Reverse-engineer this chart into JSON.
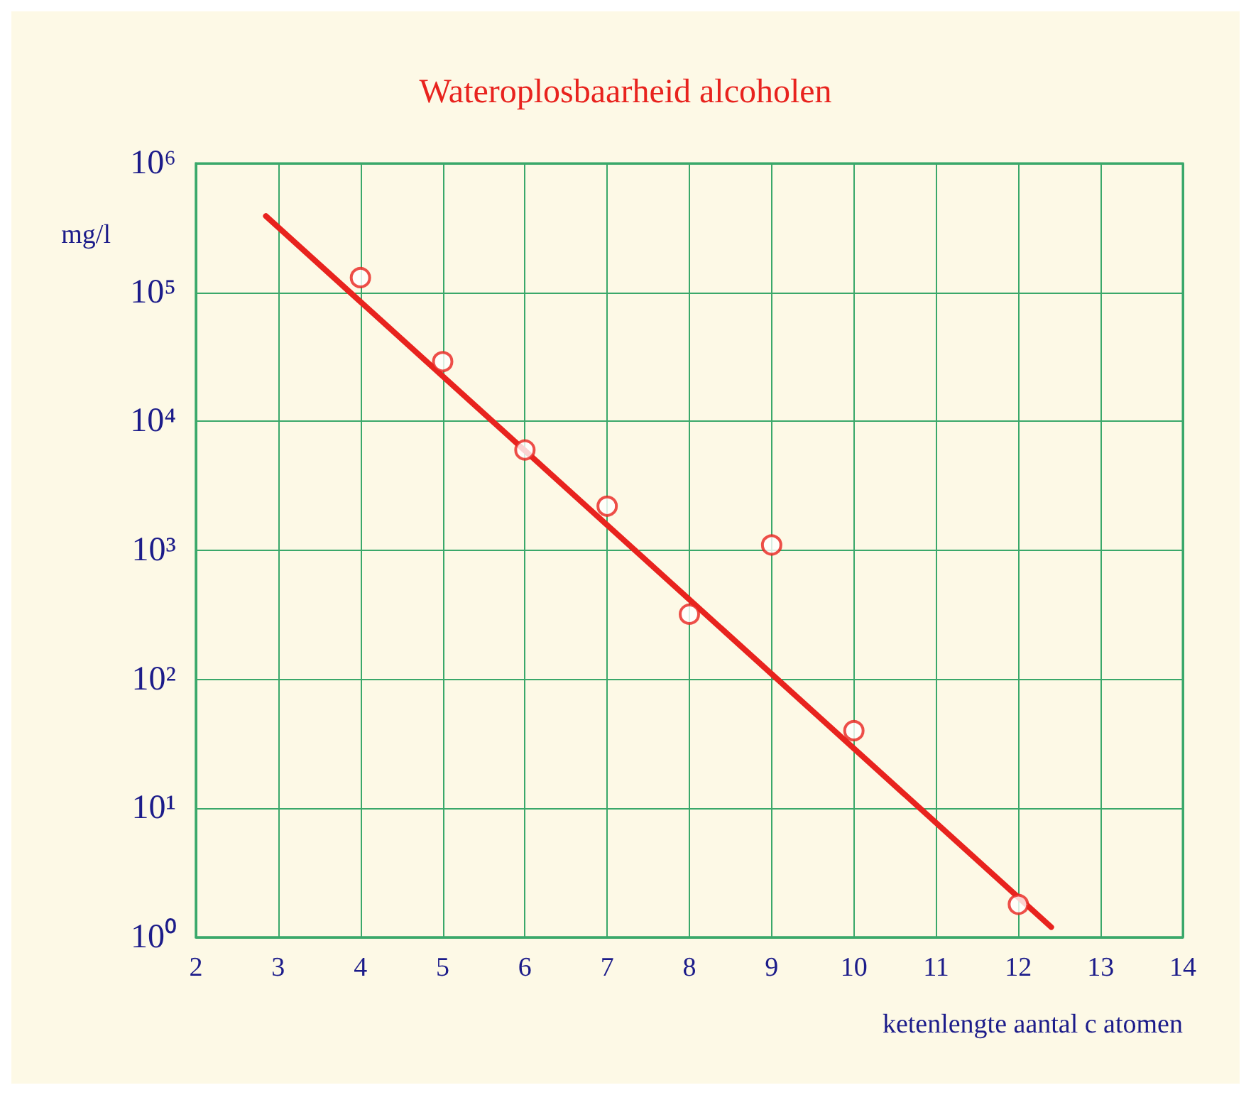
{
  "chart_data": {
    "type": "scatter",
    "title": "Wateroplosbaarheid alcoholen",
    "xlabel": "ketenlengte aantal c atomen",
    "ylabel": "mg/l",
    "log": "y",
    "grid": true,
    "xlim": [
      2,
      14
    ],
    "xticks": [
      2,
      3,
      4,
      5,
      6,
      7,
      8,
      9,
      10,
      11,
      12,
      13,
      14
    ],
    "ylim": [
      1,
      1000000
    ],
    "yticks": [
      {
        "value": 1,
        "label": "10⁰"
      },
      {
        "value": 10,
        "label": "10¹"
      },
      {
        "value": 100,
        "label": "10²"
      },
      {
        "value": 1000,
        "label": "10³"
      },
      {
        "value": 10000,
        "label": "10⁴"
      },
      {
        "value": 100000,
        "label": "10⁵"
      },
      {
        "value": 1000000,
        "label": "10⁶"
      }
    ],
    "series": [
      {
        "color": "#e8231e",
        "marker": "circle",
        "x": [
          4,
          5,
          6,
          7,
          8,
          9,
          10,
          12
        ],
        "values": [
          130000,
          29000,
          6000,
          2200,
          320,
          1100,
          40,
          1.8
        ]
      },
      {
        "type": "line",
        "color": "#e8231e",
        "marker": "none",
        "line_style": "solid",
        "x": [
          2.85,
          12.4
        ],
        "values": [
          390000,
          1.2
        ]
      }
    ]
  }
}
